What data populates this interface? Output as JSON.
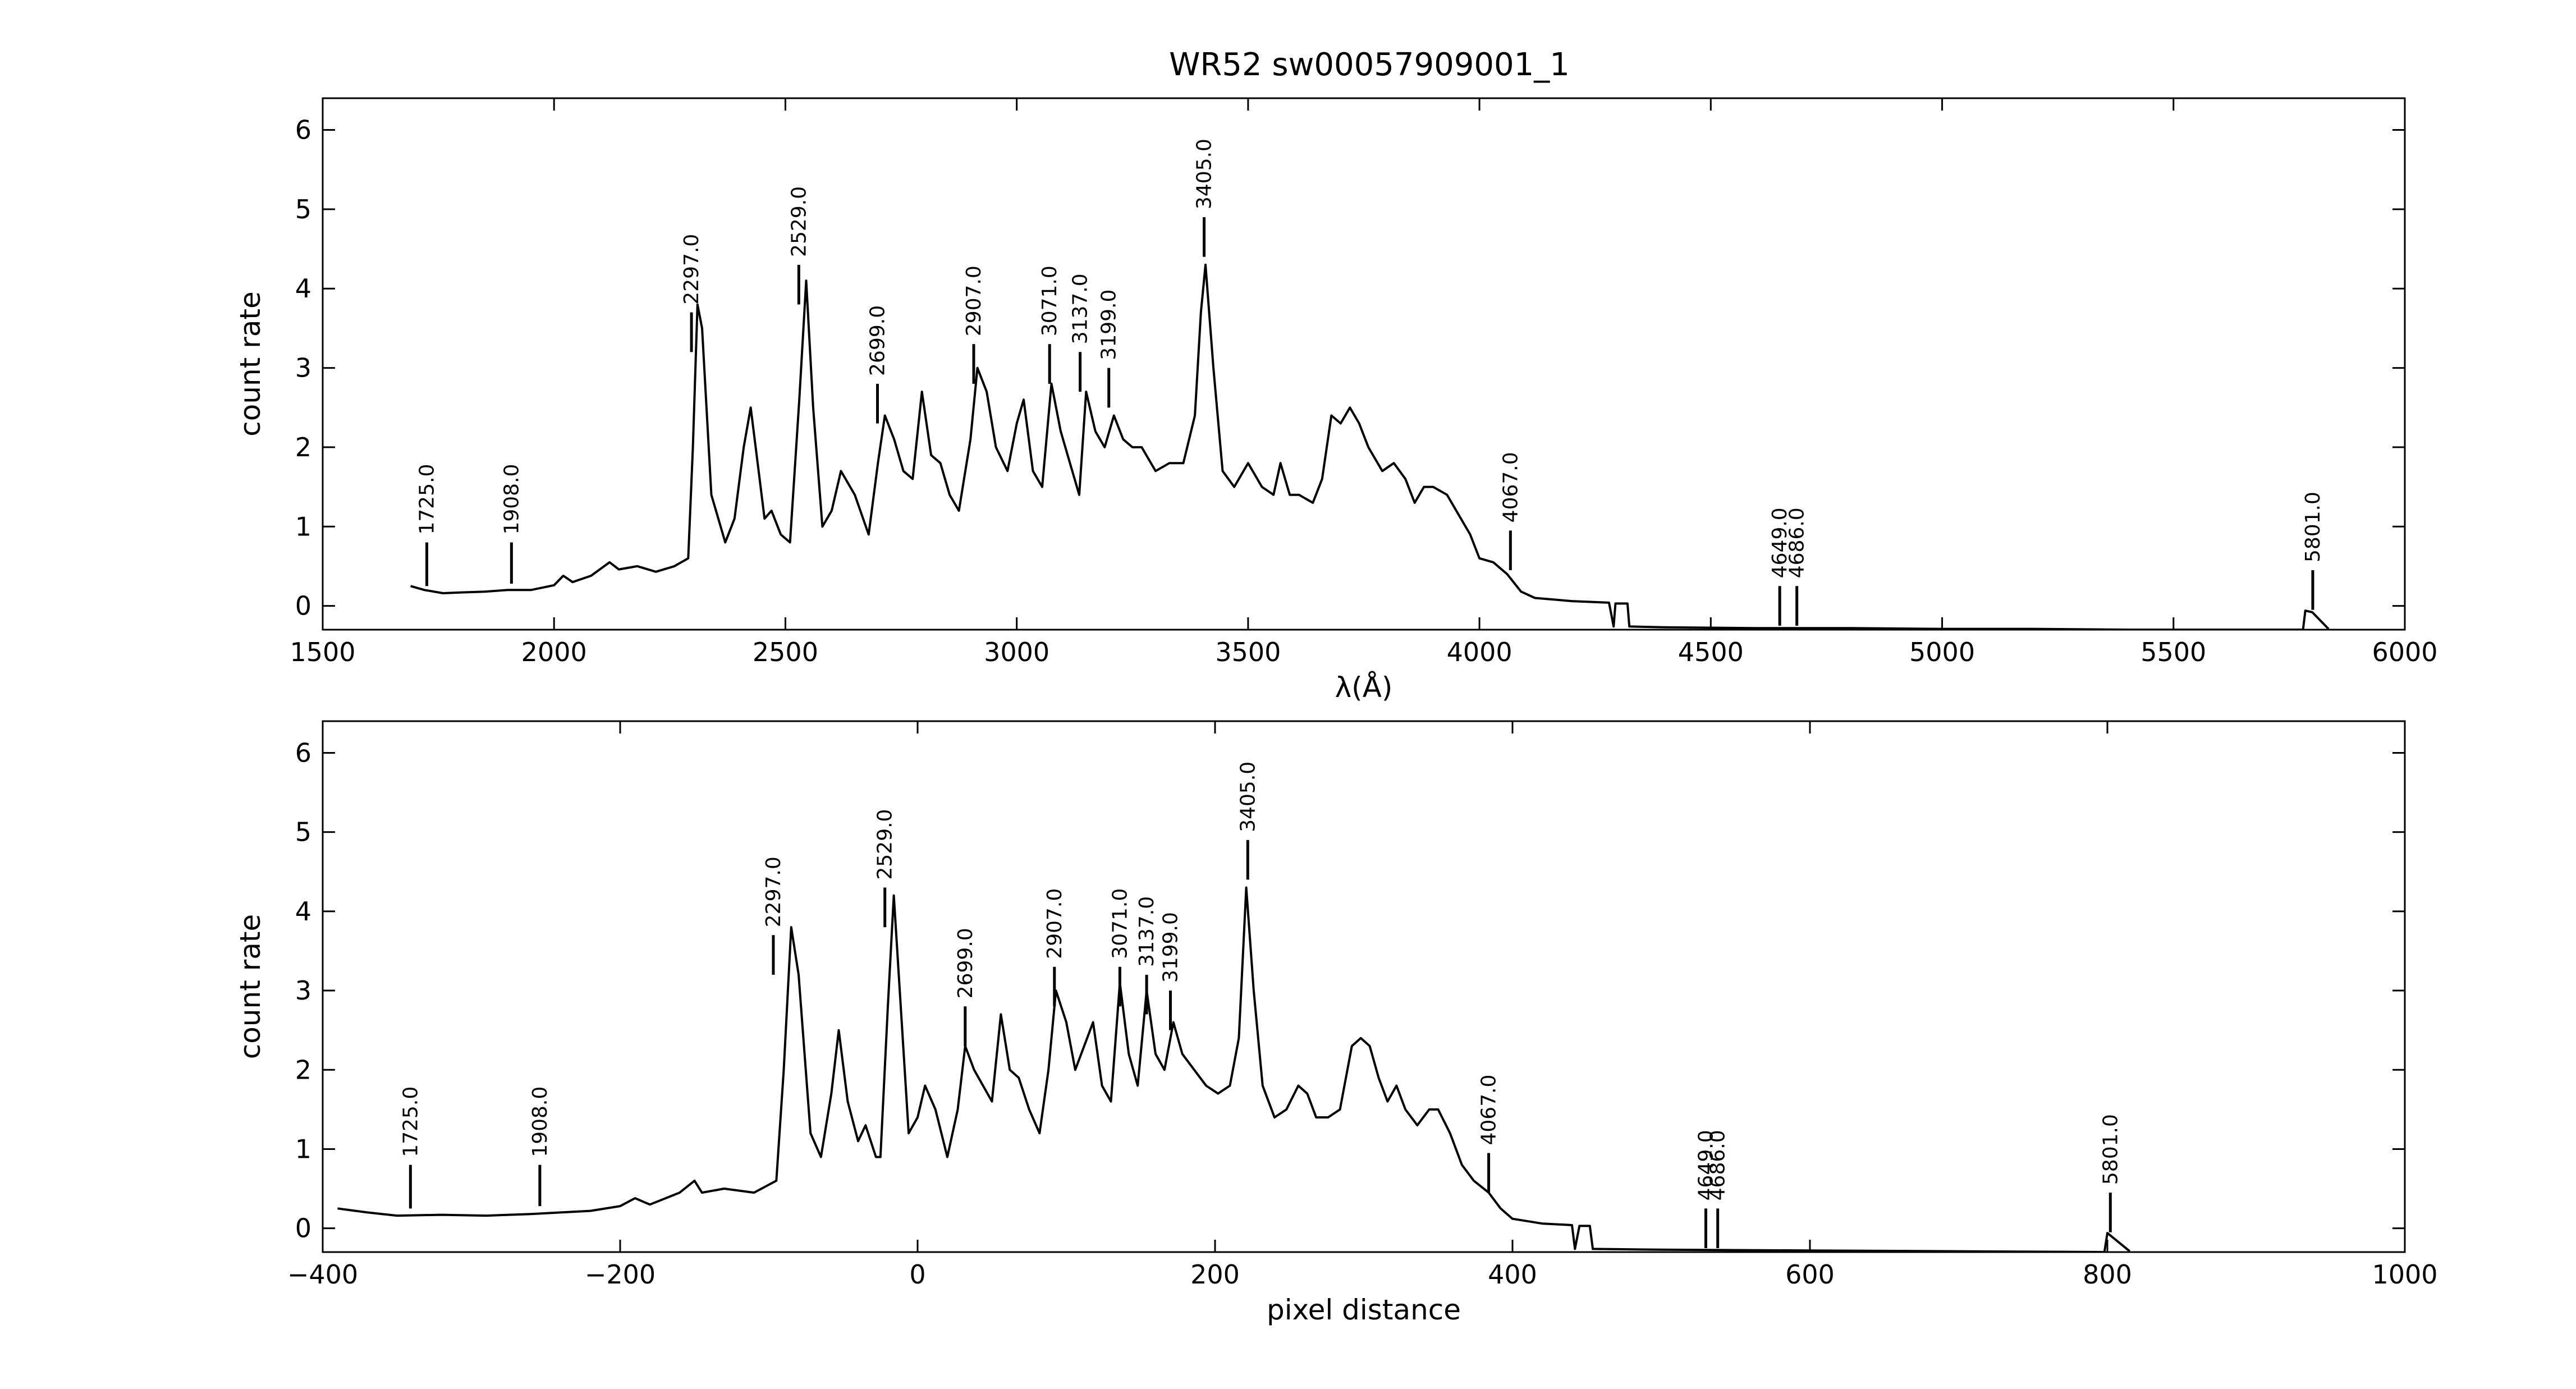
{
  "figure": {
    "title": "WR52  sw00057909001_1",
    "line_color": "#000000"
  },
  "chart_data": [
    {
      "type": "line",
      "name": "wavelength-panel",
      "xlabel": "λ(Å)",
      "ylabel": "count rate",
      "xlim": [
        1500,
        6000
      ],
      "ylim": [
        -0.3,
        6.4
      ],
      "xticks": [
        1500,
        2000,
        2500,
        3000,
        3500,
        4000,
        4500,
        5000,
        5500,
        6000
      ],
      "yticks": [
        0,
        1,
        2,
        3,
        4,
        5,
        6
      ],
      "grid": false,
      "series_points": [
        [
          1690,
          0.25
        ],
        [
          1720,
          0.2
        ],
        [
          1760,
          0.16
        ],
        [
          1800,
          0.17
        ],
        [
          1850,
          0.18
        ],
        [
          1900,
          0.2
        ],
        [
          1950,
          0.2
        ],
        [
          2000,
          0.26
        ],
        [
          2020,
          0.38
        ],
        [
          2040,
          0.3
        ],
        [
          2080,
          0.38
        ],
        [
          2120,
          0.55
        ],
        [
          2140,
          0.46
        ],
        [
          2180,
          0.5
        ],
        [
          2220,
          0.43
        ],
        [
          2260,
          0.5
        ],
        [
          2290,
          0.6
        ],
        [
          2300,
          2.0
        ],
        [
          2310,
          3.8
        ],
        [
          2320,
          3.5
        ],
        [
          2340,
          1.4
        ],
        [
          2370,
          0.8
        ],
        [
          2390,
          1.1
        ],
        [
          2410,
          2.0
        ],
        [
          2425,
          2.5
        ],
        [
          2440,
          1.8
        ],
        [
          2455,
          1.1
        ],
        [
          2470,
          1.2
        ],
        [
          2490,
          0.9
        ],
        [
          2510,
          0.8
        ],
        [
          2530,
          2.6
        ],
        [
          2545,
          4.1
        ],
        [
          2560,
          2.5
        ],
        [
          2580,
          1.0
        ],
        [
          2600,
          1.2
        ],
        [
          2620,
          1.7
        ],
        [
          2650,
          1.4
        ],
        [
          2680,
          0.9
        ],
        [
          2700,
          1.8
        ],
        [
          2715,
          2.4
        ],
        [
          2735,
          2.1
        ],
        [
          2755,
          1.7
        ],
        [
          2775,
          1.6
        ],
        [
          2795,
          2.7
        ],
        [
          2815,
          1.9
        ],
        [
          2835,
          1.8
        ],
        [
          2855,
          1.4
        ],
        [
          2875,
          1.2
        ],
        [
          2900,
          2.1
        ],
        [
          2915,
          3.0
        ],
        [
          2935,
          2.7
        ],
        [
          2955,
          2.0
        ],
        [
          2980,
          1.7
        ],
        [
          3000,
          2.3
        ],
        [
          3015,
          2.6
        ],
        [
          3035,
          1.7
        ],
        [
          3055,
          1.5
        ],
        [
          3075,
          2.8
        ],
        [
          3095,
          2.2
        ],
        [
          3115,
          1.8
        ],
        [
          3135,
          1.4
        ],
        [
          3150,
          2.7
        ],
        [
          3170,
          2.2
        ],
        [
          3190,
          2.0
        ],
        [
          3210,
          2.4
        ],
        [
          3230,
          2.1
        ],
        [
          3250,
          2.0
        ],
        [
          3270,
          2.0
        ],
        [
          3300,
          1.7
        ],
        [
          3330,
          1.8
        ],
        [
          3360,
          1.8
        ],
        [
          3385,
          2.4
        ],
        [
          3398,
          3.7
        ],
        [
          3408,
          4.3
        ],
        [
          3425,
          3.0
        ],
        [
          3445,
          1.7
        ],
        [
          3470,
          1.5
        ],
        [
          3500,
          1.8
        ],
        [
          3530,
          1.5
        ],
        [
          3555,
          1.4
        ],
        [
          3570,
          1.8
        ],
        [
          3590,
          1.4
        ],
        [
          3610,
          1.4
        ],
        [
          3640,
          1.3
        ],
        [
          3660,
          1.6
        ],
        [
          3680,
          2.4
        ],
        [
          3700,
          2.3
        ],
        [
          3720,
          2.5
        ],
        [
          3740,
          2.3
        ],
        [
          3760,
          2.0
        ],
        [
          3790,
          1.7
        ],
        [
          3815,
          1.8
        ],
        [
          3840,
          1.6
        ],
        [
          3860,
          1.3
        ],
        [
          3880,
          1.5
        ],
        [
          3900,
          1.5
        ],
        [
          3930,
          1.4
        ],
        [
          3960,
          1.1
        ],
        [
          3980,
          0.9
        ],
        [
          4000,
          0.6
        ],
        [
          4030,
          0.55
        ],
        [
          4060,
          0.4
        ],
        [
          4090,
          0.18
        ],
        [
          4120,
          0.1
        ],
        [
          4160,
          0.08
        ],
        [
          4200,
          0.06
        ],
        [
          4240,
          0.05
        ],
        [
          4280,
          0.04
        ],
        [
          4290,
          -0.26
        ],
        [
          4294,
          0.03
        ],
        [
          4320,
          0.03
        ],
        [
          4324,
          -0.26
        ],
        [
          4400,
          -0.27
        ],
        [
          4600,
          -0.28
        ],
        [
          4800,
          -0.28
        ],
        [
          5000,
          -0.29
        ],
        [
          5200,
          -0.29
        ],
        [
          5400,
          -0.3
        ],
        [
          5600,
          -0.3
        ],
        [
          5780,
          -0.3
        ],
        [
          5785,
          -0.06
        ],
        [
          5800,
          -0.08
        ],
        [
          5835,
          -0.29
        ]
      ],
      "annotations": [
        {
          "x": 1725,
          "y0": 0.25,
          "y1": 0.8,
          "label": "1725.0"
        },
        {
          "x": 1908,
          "y0": 0.28,
          "y1": 0.8,
          "label": "1908.0"
        },
        {
          "x": 2297,
          "y0": 3.2,
          "y1": 3.7,
          "label": "2297.0"
        },
        {
          "x": 2529,
          "y0": 3.8,
          "y1": 4.3,
          "label": "2529.0"
        },
        {
          "x": 2699,
          "y0": 2.3,
          "y1": 2.8,
          "label": "2699.0"
        },
        {
          "x": 2907,
          "y0": 2.8,
          "y1": 3.3,
          "label": "2907.0"
        },
        {
          "x": 3071,
          "y0": 2.8,
          "y1": 3.3,
          "label": "3071.0"
        },
        {
          "x": 3137,
          "y0": 2.7,
          "y1": 3.2,
          "label": "3137.0"
        },
        {
          "x": 3199,
          "y0": 2.5,
          "y1": 3.0,
          "label": "3199.0"
        },
        {
          "x": 3405,
          "y0": 4.4,
          "y1": 4.9,
          "label": "3405.0"
        },
        {
          "x": 4067,
          "y0": 0.45,
          "y1": 0.95,
          "label": "4067.0"
        },
        {
          "x": 4649,
          "y0": -0.25,
          "y1": 0.25,
          "label": "4649.0"
        },
        {
          "x": 4686,
          "y0": -0.25,
          "y1": 0.25,
          "label": "4686.0"
        },
        {
          "x": 5801,
          "y0": -0.05,
          "y1": 0.45,
          "label": "5801.0"
        }
      ]
    },
    {
      "type": "line",
      "name": "pixel-panel",
      "xlabel": "pixel distance",
      "ylabel": "count rate",
      "xlim": [
        -400,
        1000
      ],
      "ylim": [
        -0.3,
        6.4
      ],
      "xticks": [
        -400,
        -200,
        0,
        200,
        400,
        600,
        800,
        1000
      ],
      "yticks": [
        0,
        1,
        2,
        3,
        4,
        5,
        6
      ],
      "grid": false,
      "series_points": [
        [
          -390,
          0.25
        ],
        [
          -370,
          0.2
        ],
        [
          -350,
          0.16
        ],
        [
          -320,
          0.17
        ],
        [
          -290,
          0.16
        ],
        [
          -260,
          0.18
        ],
        [
          -240,
          0.2
        ],
        [
          -220,
          0.22
        ],
        [
          -200,
          0.28
        ],
        [
          -190,
          0.38
        ],
        [
          -180,
          0.3
        ],
        [
          -160,
          0.45
        ],
        [
          -150,
          0.6
        ],
        [
          -145,
          0.45
        ],
        [
          -130,
          0.5
        ],
        [
          -110,
          0.45
        ],
        [
          -100,
          0.55
        ],
        [
          -95,
          0.6
        ],
        [
          -90,
          2.0
        ],
        [
          -85,
          3.8
        ],
        [
          -80,
          3.2
        ],
        [
          -72,
          1.2
        ],
        [
          -65,
          0.9
        ],
        [
          -58,
          1.7
        ],
        [
          -53,
          2.5
        ],
        [
          -47,
          1.6
        ],
        [
          -40,
          1.1
        ],
        [
          -35,
          1.3
        ],
        [
          -28,
          0.9
        ],
        [
          -25,
          0.9
        ],
        [
          -20,
          2.8
        ],
        [
          -16,
          4.2
        ],
        [
          -12,
          3.0
        ],
        [
          -6,
          1.2
        ],
        [
          0,
          1.4
        ],
        [
          5,
          1.8
        ],
        [
          12,
          1.5
        ],
        [
          20,
          0.9
        ],
        [
          27,
          1.5
        ],
        [
          32,
          2.3
        ],
        [
          38,
          2.0
        ],
        [
          44,
          1.8
        ],
        [
          50,
          1.6
        ],
        [
          56,
          2.7
        ],
        [
          62,
          2.0
        ],
        [
          68,
          1.9
        ],
        [
          75,
          1.5
        ],
        [
          82,
          1.2
        ],
        [
          88,
          2.0
        ],
        [
          93,
          3.0
        ],
        [
          100,
          2.6
        ],
        [
          106,
          2.0
        ],
        [
          112,
          2.3
        ],
        [
          118,
          2.6
        ],
        [
          124,
          1.8
        ],
        [
          130,
          1.6
        ],
        [
          136,
          3.1
        ],
        [
          142,
          2.2
        ],
        [
          148,
          1.8
        ],
        [
          154,
          3.0
        ],
        [
          160,
          2.2
        ],
        [
          166,
          2.0
        ],
        [
          172,
          2.6
        ],
        [
          178,
          2.2
        ],
        [
          186,
          2.0
        ],
        [
          194,
          1.8
        ],
        [
          202,
          1.7
        ],
        [
          210,
          1.8
        ],
        [
          216,
          2.4
        ],
        [
          221,
          4.3
        ],
        [
          226,
          3.0
        ],
        [
          232,
          1.8
        ],
        [
          240,
          1.4
        ],
        [
          248,
          1.5
        ],
        [
          256,
          1.8
        ],
        [
          262,
          1.7
        ],
        [
          268,
          1.4
        ],
        [
          276,
          1.4
        ],
        [
          284,
          1.5
        ],
        [
          292,
          2.3
        ],
        [
          298,
          2.4
        ],
        [
          304,
          2.3
        ],
        [
          310,
          1.9
        ],
        [
          316,
          1.6
        ],
        [
          322,
          1.8
        ],
        [
          328,
          1.5
        ],
        [
          336,
          1.3
        ],
        [
          344,
          1.5
        ],
        [
          350,
          1.5
        ],
        [
          358,
          1.2
        ],
        [
          366,
          0.8
        ],
        [
          374,
          0.6
        ],
        [
          384,
          0.45
        ],
        [
          392,
          0.25
        ],
        [
          400,
          0.12
        ],
        [
          420,
          0.06
        ],
        [
          440,
          0.04
        ],
        [
          442,
          -0.26
        ],
        [
          445,
          0.03
        ],
        [
          452,
          0.03
        ],
        [
          454,
          -0.26
        ],
        [
          500,
          -0.27
        ],
        [
          600,
          -0.28
        ],
        [
          700,
          -0.29
        ],
        [
          798,
          -0.3
        ],
        [
          800,
          -0.06
        ],
        [
          815,
          -0.29
        ]
      ],
      "annotations": [
        {
          "x": -341,
          "y0": 0.25,
          "y1": 0.8,
          "label": "1725.0"
        },
        {
          "x": -254,
          "y0": 0.28,
          "y1": 0.8,
          "label": "1908.0"
        },
        {
          "x": -97,
          "y0": 3.2,
          "y1": 3.7,
          "label": "2297.0"
        },
        {
          "x": -22,
          "y0": 3.8,
          "y1": 4.3,
          "label": "2529.0"
        },
        {
          "x": 32,
          "y0": 2.3,
          "y1": 2.8,
          "label": "2699.0"
        },
        {
          "x": 92,
          "y0": 2.8,
          "y1": 3.3,
          "label": "2907.0"
        },
        {
          "x": 136,
          "y0": 2.8,
          "y1": 3.3,
          "label": "3071.0"
        },
        {
          "x": 154,
          "y0": 2.7,
          "y1": 3.2,
          "label": "3137.0"
        },
        {
          "x": 170,
          "y0": 2.5,
          "y1": 3.0,
          "label": "3199.0"
        },
        {
          "x": 222,
          "y0": 4.4,
          "y1": 4.9,
          "label": "3405.0"
        },
        {
          "x": 384,
          "y0": 0.45,
          "y1": 0.95,
          "label": "4067.0"
        },
        {
          "x": 530,
          "y0": -0.25,
          "y1": 0.25,
          "label": "4649.0"
        },
        {
          "x": 538,
          "y0": -0.25,
          "y1": 0.25,
          "label": "4686.0"
        },
        {
          "x": 802,
          "y0": -0.05,
          "y1": 0.45,
          "label": "5801.0"
        }
      ]
    }
  ]
}
